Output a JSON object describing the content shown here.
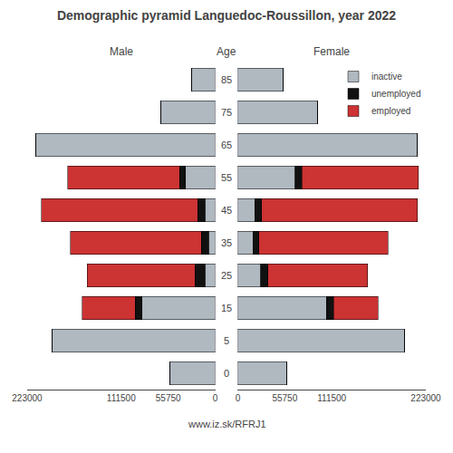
{
  "chart_data": {
    "type": "bar",
    "title": "Demographic pyramid Languedoc-Roussillon, year 2022",
    "annotations": [
      "www.iz.sk/RFRJ1"
    ],
    "ylabel": "Age",
    "orientation": "horizontal",
    "stacked": true,
    "grid": false,
    "legend": "upper right",
    "categories": [
      "85",
      "75",
      "65",
      "55",
      "45",
      "35",
      "25",
      "15",
      "5",
      "0"
    ],
    "panels": [
      {
        "title": "Male",
        "xlim": [
          223000,
          0
        ],
        "xticks": [
          223000,
          111500,
          55750,
          0
        ],
        "series": [
          {
            "name": "inactive",
            "color": "#b0b8c0",
            "values": [
              28000,
              65000,
              213000,
              35000,
              12000,
              8000,
              12000,
              87000,
              193000,
              54000
            ]
          },
          {
            "name": "unemployed",
            "color": "#111111",
            "values": [
              0,
              0,
              0,
              7000,
              9000,
              8500,
              12000,
              8000,
              0,
              0
            ]
          },
          {
            "name": "employed",
            "color": "#cc3333",
            "values": [
              0,
              0,
              0,
              133000,
              185000,
              155000,
              128000,
              63000,
              0,
              0
            ]
          }
        ]
      },
      {
        "title": "Female",
        "xlim": [
          0,
          223000
        ],
        "xticks": [
          0,
          55750,
          111500,
          223000
        ],
        "series": [
          {
            "name": "inactive",
            "color": "#b0b8c0",
            "values": [
              54000,
              95000,
              213000,
              68000,
              20000,
              18000,
              27000,
              105000,
              198000,
              58000
            ]
          },
          {
            "name": "unemployed",
            "color": "#111111",
            "values": [
              0,
              0,
              0,
              8000,
              8000,
              7000,
              9000,
              8500,
              0,
              0
            ]
          },
          {
            "name": "employed",
            "color": "#cc3333",
            "values": [
              0,
              0,
              0,
              138000,
              185000,
              153000,
              118000,
              53000,
              0,
              0
            ]
          }
        ]
      }
    ]
  }
}
